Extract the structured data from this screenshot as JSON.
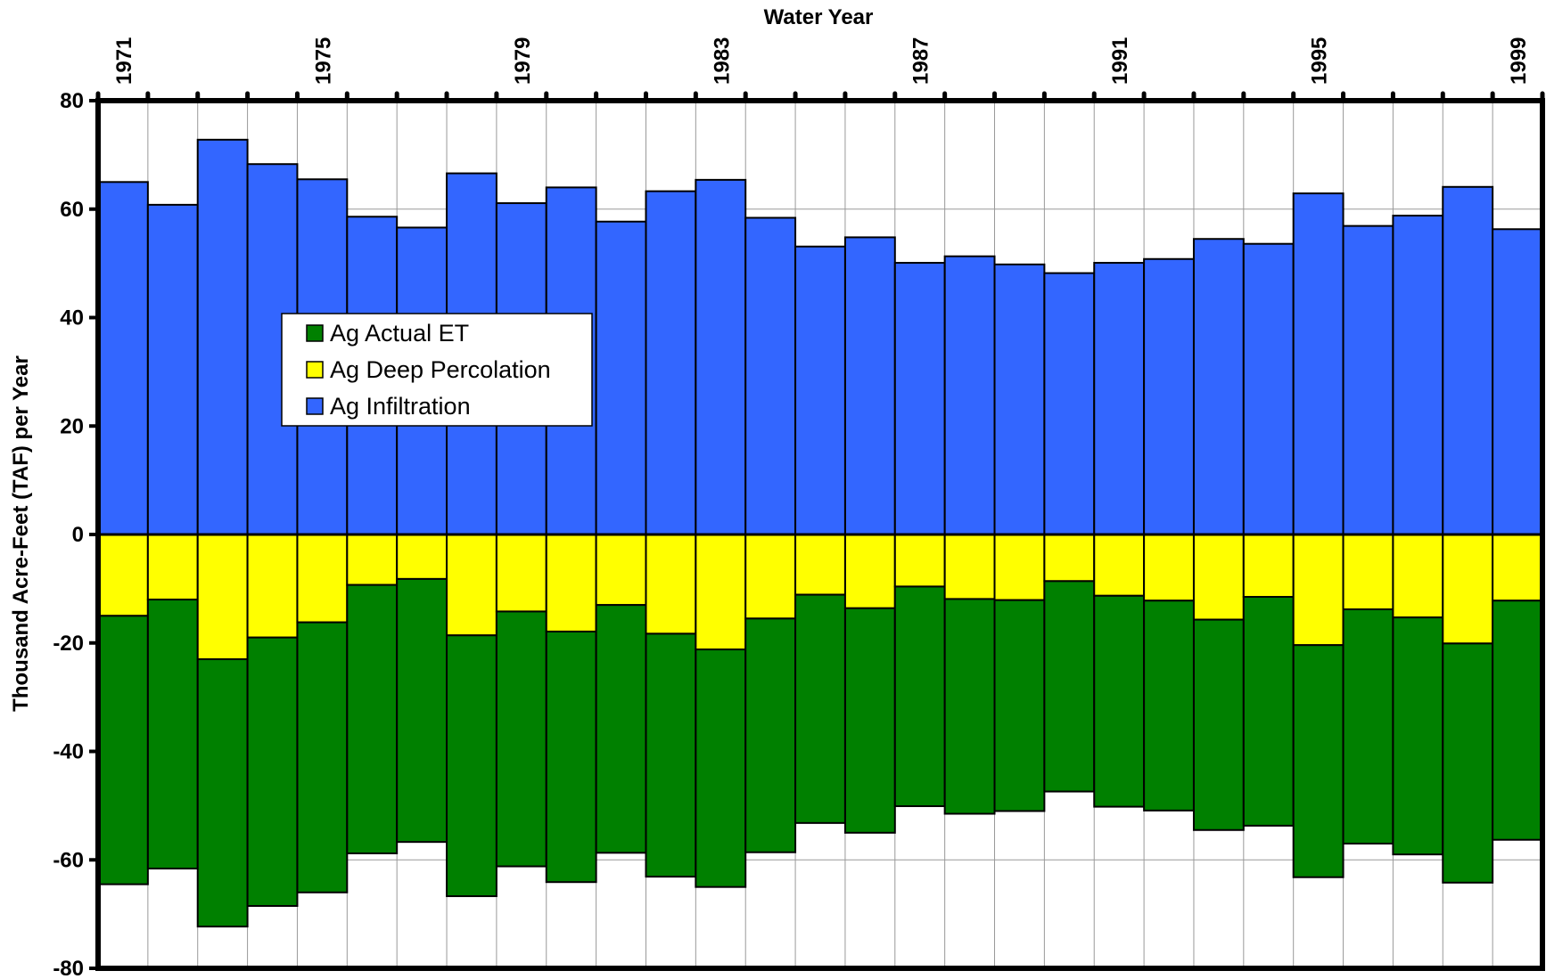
{
  "chart_data": {
    "type": "bar",
    "stacked": true,
    "xlabel": "Water Year",
    "ylabel": "Thousand Acre-Feet (TAF) per Year",
    "x_axis_position": "top",
    "ylim": [
      -80,
      80
    ],
    "yticks": [
      -80,
      -60,
      -40,
      -20,
      0,
      20,
      40,
      60,
      80
    ],
    "grid": true,
    "legend_position": "upper-left",
    "categories": [
      1971,
      1972,
      1973,
      1974,
      1975,
      1976,
      1977,
      1978,
      1979,
      1980,
      1981,
      1982,
      1983,
      1984,
      1985,
      1986,
      1987,
      1988,
      1989,
      1990,
      1991,
      1992,
      1993,
      1994,
      1995,
      1996,
      1997,
      1998,
      1999
    ],
    "x_tick_labels": [
      "1971",
      "1975",
      "1979",
      "1983",
      "1987",
      "1991",
      "1995",
      "1999"
    ],
    "series": [
      {
        "name": "Ag Actual ET",
        "color": "#008000",
        "values": [
          -49.5,
          -49.6,
          -49.3,
          -49.5,
          -49.8,
          -49.5,
          -48.5,
          -48.1,
          -47.0,
          -46.2,
          -45.7,
          -44.8,
          -43.8,
          -43.1,
          -42.1,
          -41.4,
          -40.5,
          -39.6,
          -38.9,
          -38.8,
          -38.9,
          -38.7,
          -38.8,
          -42.2,
          -42.8,
          -43.2,
          -43.7,
          -44.1,
          -44.1
        ]
      },
      {
        "name": "Ag Deep Percolation",
        "color": "#ffff00",
        "values": [
          -15.0,
          -12.0,
          -23.0,
          -19.0,
          -16.2,
          -9.3,
          -8.2,
          -18.6,
          -14.2,
          -17.9,
          -13.0,
          -18.3,
          -21.2,
          -15.5,
          -11.1,
          -13.6,
          -9.6,
          -11.9,
          -12.1,
          -8.6,
          -11.3,
          -12.2,
          -15.7,
          -11.5,
          -20.4,
          -13.8,
          -15.3,
          -20.1,
          -12.2
        ]
      },
      {
        "name": "Ag Infiltration",
        "color": "#3366ff",
        "values": [
          65.0,
          60.8,
          72.8,
          68.3,
          65.5,
          58.6,
          56.6,
          66.6,
          61.1,
          64.0,
          57.7,
          63.3,
          65.4,
          58.4,
          53.1,
          54.8,
          50.1,
          51.3,
          49.8,
          48.2,
          50.1,
          50.8,
          54.5,
          53.6,
          62.9,
          56.9,
          58.8,
          64.1,
          56.3
        ]
      }
    ]
  }
}
